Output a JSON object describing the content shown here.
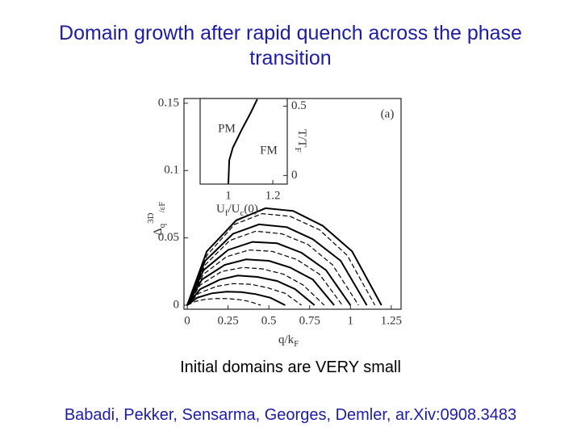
{
  "title": "Domain growth after rapid quench across the phase transition",
  "caption": "Initial domains are VERY small",
  "citation": "Babadi, Pekker, Sensarma, Georges, Demler, ar.Xiv:0908.3483",
  "chart_data": [
    {
      "type": "line",
      "annotation": "(a)",
      "x_label": [
        "q/k",
        "F"
      ],
      "y_label": [
        "Δ",
        "q",
        "3D",
        "/ε",
        "F"
      ],
      "xlim": [
        -0.02,
        1.31
      ],
      "ylim": [
        -0.003,
        0.1535
      ],
      "xticks": [
        0,
        0.25,
        0.5,
        0.75,
        1,
        1.25
      ],
      "yticks": [
        0,
        0.05,
        0.1,
        0.15
      ],
      "series": [
        {
          "color": "#000000",
          "dashed": false,
          "x": [
            0,
            0.12,
            0.3,
            0.48,
            0.65,
            0.83,
            1.01,
            1.19
          ],
          "values": [
            0,
            0.04,
            0.063,
            0.072,
            0.07,
            0.059,
            0.04,
            0
          ]
        },
        {
          "color": "#000000",
          "dashed": false,
          "x": [
            0,
            0.11,
            0.28,
            0.44,
            0.61,
            0.77,
            0.94,
            1.1
          ],
          "values": [
            0,
            0.033,
            0.053,
            0.06,
            0.058,
            0.049,
            0.033,
            0
          ]
        },
        {
          "color": "#000000",
          "dashed": false,
          "x": [
            0,
            0.1,
            0.25,
            0.4,
            0.55,
            0.7,
            0.85,
            1.0
          ],
          "values": [
            0,
            0.026,
            0.041,
            0.047,
            0.046,
            0.039,
            0.026,
            0
          ]
        },
        {
          "color": "#000000",
          "dashed": false,
          "x": [
            0,
            0.09,
            0.23,
            0.36,
            0.5,
            0.63,
            0.77,
            0.9
          ],
          "values": [
            0,
            0.019,
            0.03,
            0.034,
            0.033,
            0.028,
            0.019,
            0
          ]
        },
        {
          "color": "#000000",
          "dashed": false,
          "x": [
            0,
            0.08,
            0.2,
            0.31,
            0.43,
            0.55,
            0.66,
            0.78
          ],
          "values": [
            0,
            0.012,
            0.019,
            0.022,
            0.021,
            0.018,
            0.012,
            0
          ]
        },
        {
          "color": "#000000",
          "dashed": false,
          "x": [
            0,
            0.06,
            0.15,
            0.24,
            0.33,
            0.42,
            0.51,
            0.6
          ],
          "values": [
            0,
            0.0055,
            0.0088,
            0.01,
            0.0097,
            0.0082,
            0.0055,
            0
          ]
        },
        {
          "color": "#000000",
          "dashed": true,
          "x": [
            0,
            0.12,
            0.29,
            0.46,
            0.63,
            0.81,
            0.98,
            1.15
          ],
          "values": [
            0,
            0.037,
            0.06,
            0.068,
            0.066,
            0.056,
            0.037,
            0
          ]
        },
        {
          "color": "#000000",
          "dashed": true,
          "x": [
            0,
            0.11,
            0.26,
            0.42,
            0.58,
            0.74,
            0.89,
            1.05
          ],
          "values": [
            0,
            0.03,
            0.048,
            0.055,
            0.053,
            0.045,
            0.03,
            0
          ]
        },
        {
          "color": "#000000",
          "dashed": true,
          "x": [
            0,
            0.1,
            0.24,
            0.38,
            0.52,
            0.67,
            0.81,
            0.95
          ],
          "values": [
            0,
            0.023,
            0.036,
            0.041,
            0.04,
            0.034,
            0.023,
            0
          ]
        },
        {
          "color": "#000000",
          "dashed": true,
          "x": [
            0,
            0.08,
            0.21,
            0.34,
            0.46,
            0.59,
            0.71,
            0.84
          ],
          "values": [
            0,
            0.015,
            0.025,
            0.028,
            0.027,
            0.023,
            0.015,
            0
          ]
        },
        {
          "color": "#000000",
          "dashed": true,
          "x": [
            0,
            0.07,
            0.18,
            0.28,
            0.39,
            0.49,
            0.6,
            0.7
          ],
          "values": [
            0,
            0.0088,
            0.014,
            0.016,
            0.0155,
            0.013,
            0.0088,
            0
          ]
        },
        {
          "color": "#000000",
          "dashed": true,
          "x": [
            0,
            0.05,
            0.11,
            0.18,
            0.25,
            0.32,
            0.38,
            0.45
          ],
          "values": [
            0,
            0.0028,
            0.0044,
            0.005,
            0.0049,
            0.0041,
            0.0028,
            0
          ]
        }
      ]
    },
    {
      "type": "line",
      "region_labels": [
        "PM",
        "FM"
      ],
      "x_label": [
        "U",
        "f",
        "/U",
        "c",
        "(0)"
      ],
      "y_label": [
        "T/T",
        "F"
      ],
      "xlim": [
        0.873,
        1.265
      ],
      "ylim": [
        -0.062,
        0.555
      ],
      "xticks": [
        1,
        1.2
      ],
      "yticks": [
        0,
        0.5
      ],
      "series": [
        {
          "color": "#000000",
          "dashed": false,
          "x": [
            1,
            1.004,
            1.02,
            1.06,
            1.1,
            1.13
          ],
          "values": [
            -0.06,
            0.11,
            0.2,
            0.33,
            0.45,
            0.55
          ]
        }
      ]
    }
  ]
}
